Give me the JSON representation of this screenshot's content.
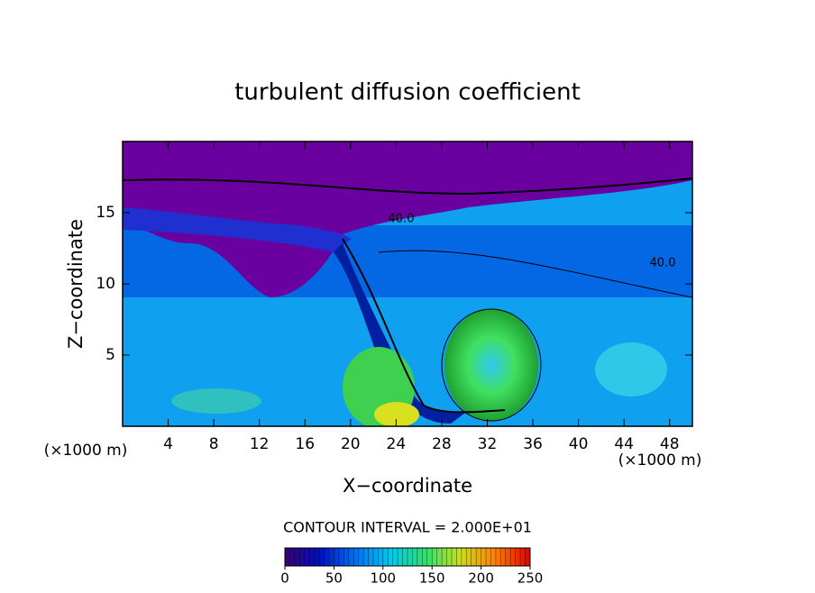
{
  "chart_data": {
    "type": "contour",
    "title": "turbulent diffusion coefficient",
    "x_label": "X−coordinate",
    "y_label": "Z−coordinate",
    "x_unit_label": "(×1000 m)",
    "y_unit_label": "(×1000 m)",
    "xlim": [
      0,
      50
    ],
    "ylim": [
      0,
      20
    ],
    "xticks": [
      4,
      8,
      12,
      16,
      20,
      24,
      28,
      32,
      36,
      40,
      44,
      48
    ],
    "yticks": [
      5,
      10,
      15
    ],
    "contour_interval_label": "CONTOUR INTERVAL = 2.000E+01",
    "contour_labels": [
      "40.0",
      "40.0"
    ],
    "colorbar": {
      "lim": [
        0,
        250
      ],
      "ticks": [
        0,
        50,
        100,
        150,
        200,
        250
      ],
      "colors": [
        "#3a0070",
        "#0010c0",
        "#0070f0",
        "#00c8f0",
        "#30e070",
        "#c8e020",
        "#ff8000",
        "#e00000"
      ]
    }
  }
}
